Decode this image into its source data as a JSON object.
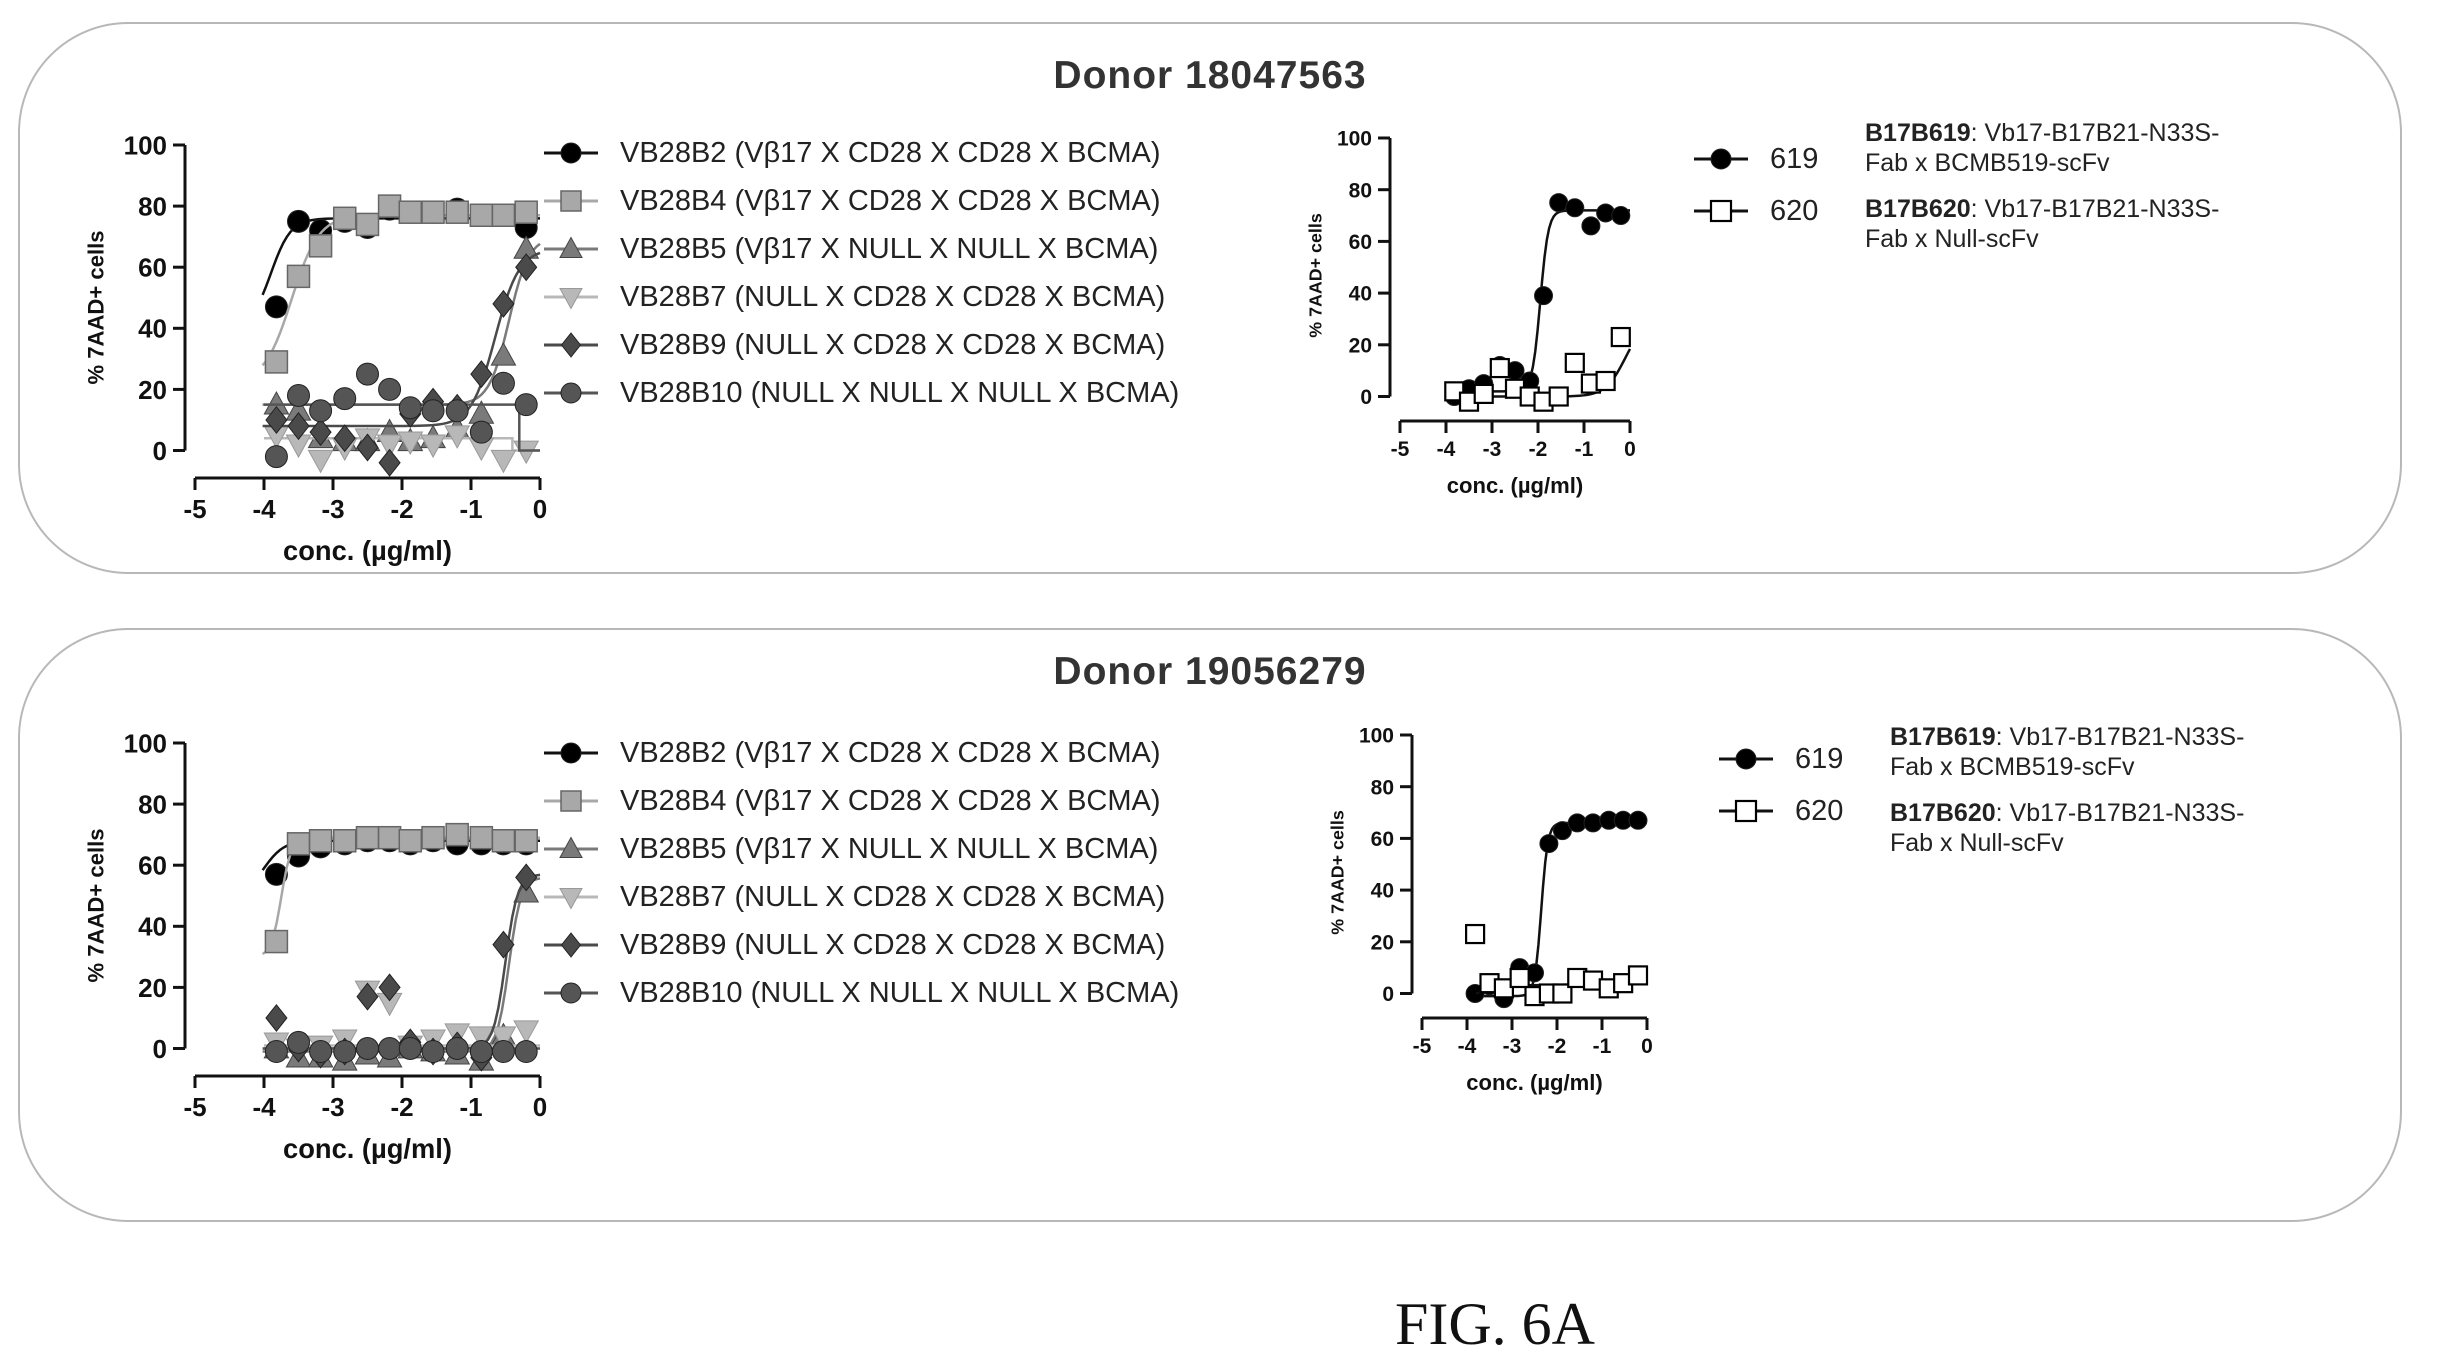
{
  "figure_label": "FIG. 6A",
  "chart_data": [
    {
      "id": "d1-main",
      "type": "scatter",
      "panel_title": "Donor 18047563",
      "xlabel": "conc. (µg/ml)",
      "ylabel": "% 7AAD+ cells",
      "xlim": [
        -5,
        0
      ],
      "ylim": [
        0,
        100
      ],
      "xticks": [
        -5,
        -4,
        -3,
        -2,
        -1,
        0
      ],
      "yticks": [
        0,
        20,
        40,
        60,
        80,
        100
      ],
      "series": [
        {
          "name": "VB28B2 (Vβ17 X CD28 X CD28 X BCMA)",
          "marker": "circle",
          "color": "#000000",
          "x": [
            -3.82,
            -3.5,
            -3.18,
            -2.83,
            -2.5,
            -2.18,
            -1.88,
            -1.55,
            -1.2,
            -0.85,
            -0.53,
            -0.2
          ],
          "y": [
            47,
            75,
            72,
            75,
            73,
            79,
            78,
            78,
            79,
            77,
            77,
            73
          ],
          "curve": {
            "type": "sigmoid",
            "bottom": 40,
            "top": 76,
            "ec50": -3.9,
            "slope": 3
          }
        },
        {
          "name": "VB28B4 (Vβ17 X CD28 X CD28 X BCMA)",
          "marker": "square",
          "color": "#a8a8a8",
          "x": [
            -3.82,
            -3.5,
            -3.18,
            -2.83,
            -2.5,
            -2.18,
            -1.88,
            -1.55,
            -1.2,
            -0.85,
            -0.53,
            -0.2
          ],
          "y": [
            29,
            57,
            67,
            76,
            74,
            80,
            78,
            78,
            78,
            77,
            77,
            78
          ],
          "curve": {
            "type": "sigmoid",
            "bottom": 22,
            "top": 77,
            "ec50": -3.6,
            "slope": 2.2
          }
        },
        {
          "name": "VB28B5 (Vβ17 X NULL X NULL X BCMA)",
          "marker": "triangle-up",
          "color": "#7a7a7a",
          "x": [
            -3.82,
            -3.5,
            -3.18,
            -2.83,
            -2.5,
            -2.18,
            -1.88,
            -1.55,
            -1.2,
            -0.85,
            -0.53,
            -0.2
          ],
          "y": [
            15,
            13,
            4,
            3,
            3,
            6,
            3,
            4,
            7,
            12,
            31,
            66
          ],
          "curve": {
            "type": "sigmoid",
            "bottom": 15,
            "top": 70,
            "ec50": -0.45,
            "slope": 3
          }
        },
        {
          "name": "VB28B7 (NULL X CD28 X CD28 X BCMA)",
          "marker": "triangle-down",
          "color": "#b8b8b8",
          "x": [
            -3.82,
            -3.5,
            -3.18,
            -2.83,
            -2.5,
            -2.18,
            -1.88,
            -1.55,
            -1.2,
            -0.85,
            -0.53,
            -0.2
          ],
          "y": [
            5,
            2,
            -3,
            1,
            4,
            2,
            3,
            2,
            5,
            1,
            -3,
            0
          ],
          "curve": {
            "type": "line",
            "x": [
              -4,
              -0.4,
              -0.4,
              0
            ],
            "y": [
              4,
              4,
              0,
              0
            ]
          }
        },
        {
          "name": "VB28B9 (NULL X CD28 X CD28 X BCMA)",
          "marker": "diamond",
          "color": "#4a4a4a",
          "x": [
            -3.82,
            -3.5,
            -3.18,
            -2.83,
            -2.5,
            -2.18,
            -1.88,
            -1.55,
            -1.2,
            -0.85,
            -0.53,
            -0.2
          ],
          "y": [
            10,
            8,
            6,
            4,
            1,
            -4,
            12,
            16,
            14,
            25,
            48,
            60
          ],
          "curve": {
            "type": "sigmoid",
            "bottom": 8,
            "top": 66,
            "ec50": -0.65,
            "slope": 2.5
          }
        },
        {
          "name": "VB28B10 (NULL X NULL X NULL X BCMA)",
          "marker": "circle",
          "color": "#555555",
          "x": [
            -3.82,
            -3.5,
            -3.18,
            -2.83,
            -2.5,
            -2.18,
            -1.88,
            -1.55,
            -1.2,
            -0.85,
            -0.53,
            -0.2
          ],
          "y": [
            -2,
            18,
            13,
            17,
            25,
            20,
            14,
            13,
            13,
            6,
            22,
            15
          ],
          "curve": {
            "type": "line",
            "x": [
              -4,
              -0.3,
              -0.3,
              0
            ],
            "y": [
              15,
              15,
              0,
              0
            ]
          }
        }
      ]
    },
    {
      "id": "d1-side",
      "type": "scatter",
      "xlabel": "conc. (µg/ml)",
      "ylabel": "% 7AAD+ cells",
      "xlim": [
        -5,
        0
      ],
      "ylim": [
        0,
        100
      ],
      "xticks": [
        -5,
        -4,
        -3,
        -2,
        -1,
        0
      ],
      "yticks": [
        0,
        20,
        40,
        60,
        80,
        100
      ],
      "series": [
        {
          "name": "619",
          "marker": "circle",
          "color": "#000000",
          "x": [
            -3.82,
            -3.5,
            -3.18,
            -2.83,
            -2.5,
            -2.18,
            -1.88,
            -1.55,
            -1.2,
            -0.85,
            -0.53,
            -0.2
          ],
          "y": [
            0,
            3,
            5,
            12,
            10,
            6,
            39,
            75,
            73,
            66,
            71,
            70
          ],
          "curve": {
            "type": "sigmoid",
            "bottom": 2,
            "top": 72,
            "ec50": -1.95,
            "slope": 5
          }
        },
        {
          "name": "620",
          "marker": "open-square",
          "color": "#000000",
          "x": [
            -3.82,
            -3.5,
            -3.18,
            -2.83,
            -2.5,
            -2.18,
            -1.88,
            -1.55,
            -1.2,
            -0.85,
            -0.53,
            -0.2
          ],
          "y": [
            2,
            -2,
            1,
            11,
            3,
            0,
            -2,
            0,
            13,
            5,
            6,
            23
          ],
          "curve": {
            "type": "sigmoid",
            "bottom": 0,
            "top": 30,
            "ec50": -0.1,
            "slope": 2
          }
        }
      ]
    },
    {
      "id": "d2-main",
      "type": "scatter",
      "panel_title": "Donor 19056279",
      "xlabel": "conc. (µg/ml)",
      "ylabel": "% 7AAD+ cells",
      "xlim": [
        -5,
        0
      ],
      "ylim": [
        0,
        100
      ],
      "xticks": [
        -5,
        -4,
        -3,
        -2,
        -1,
        0
      ],
      "yticks": [
        0,
        20,
        40,
        60,
        80,
        100
      ],
      "series": [
        {
          "name": "VB28B2 (Vβ17 X CD28 X CD28 X BCMA)",
          "marker": "circle",
          "color": "#000000",
          "x": [
            -3.82,
            -3.5,
            -3.18,
            -2.83,
            -2.5,
            -2.18,
            -1.88,
            -1.55,
            -1.2,
            -0.85,
            -0.53,
            -0.2
          ],
          "y": [
            57,
            63,
            66,
            67,
            68,
            68,
            67,
            68,
            67,
            67,
            67,
            67
          ],
          "curve": {
            "type": "sigmoid",
            "bottom": 50,
            "top": 68,
            "ec50": -4.0,
            "slope": 3
          }
        },
        {
          "name": "VB28B4 (Vβ17 X CD28 X CD28 X BCMA)",
          "marker": "square",
          "color": "#a8a8a8",
          "x": [
            -3.82,
            -3.5,
            -3.18,
            -2.83,
            -2.5,
            -2.18,
            -1.88,
            -1.55,
            -1.2,
            -0.85,
            -0.53,
            -0.2
          ],
          "y": [
            35,
            67,
            68,
            68,
            69,
            69,
            68,
            69,
            70,
            69,
            68,
            68
          ],
          "curve": {
            "type": "sigmoid",
            "bottom": 30,
            "top": 69,
            "ec50": -3.75,
            "slope": 6
          }
        },
        {
          "name": "VB28B5 (Vβ17 X NULL X NULL X BCMA)",
          "marker": "triangle-up",
          "color": "#7a7a7a",
          "x": [
            -3.82,
            -3.5,
            -3.18,
            -2.83,
            -2.5,
            -2.18,
            -1.88,
            -1.55,
            -1.2,
            -0.85,
            -0.53,
            -0.2
          ],
          "y": [
            0,
            -3,
            -3,
            -4,
            -2,
            -3,
            0,
            -1,
            -2,
            -4,
            4,
            51
          ],
          "curve": {
            "type": "sigmoid",
            "bottom": -1,
            "top": 56,
            "ec50": -0.45,
            "slope": 5
          }
        },
        {
          "name": "VB28B7 (NULL X CD28 X CD28 X BCMA)",
          "marker": "triangle-down",
          "color": "#b8b8b8",
          "x": [
            -3.82,
            -3.5,
            -3.18,
            -2.83,
            -2.5,
            -2.18,
            -1.88,
            -1.55,
            -1.2,
            -0.85,
            -0.53,
            -0.2
          ],
          "y": [
            2,
            0,
            1,
            3,
            19,
            15,
            1,
            3,
            5,
            4,
            4,
            6
          ],
          "curve": {
            "type": "line",
            "x": [
              -4,
              0
            ],
            "y": [
              1,
              1
            ]
          }
        },
        {
          "name": "VB28B9 (NULL X CD28 X CD28 X BCMA)",
          "marker": "diamond",
          "color": "#4a4a4a",
          "x": [
            -3.82,
            -3.5,
            -3.18,
            -2.83,
            -2.5,
            -2.18,
            -1.88,
            -1.55,
            -1.2,
            -0.85,
            -0.53,
            -0.2
          ],
          "y": [
            10,
            0,
            -2,
            -1,
            17,
            20,
            2,
            -1,
            1,
            -3,
            34,
            56
          ],
          "curve": {
            "type": "sigmoid",
            "bottom": 0,
            "top": 57,
            "ec50": -0.5,
            "slope": 5
          }
        },
        {
          "name": "VB28B10 (NULL X NULL X NULL X BCMA)",
          "marker": "circle",
          "color": "#555555",
          "x": [
            -3.82,
            -3.5,
            -3.18,
            -2.83,
            -2.5,
            -2.18,
            -1.88,
            -1.55,
            -1.2,
            -0.85,
            -0.53,
            -0.2
          ],
          "y": [
            -1,
            2,
            -1,
            -1,
            0,
            0,
            0,
            -1,
            0,
            -1,
            -1,
            -1
          ],
          "curve": {
            "type": "line",
            "x": [
              -4,
              0
            ],
            "y": [
              0,
              0
            ]
          }
        }
      ]
    },
    {
      "id": "d2-side",
      "type": "scatter",
      "xlabel": "conc. (µg/ml)",
      "ylabel": "% 7AAD+ cells",
      "xlim": [
        -5,
        0
      ],
      "ylim": [
        0,
        100
      ],
      "xticks": [
        -5,
        -4,
        -3,
        -2,
        -1,
        0
      ],
      "yticks": [
        0,
        20,
        40,
        60,
        80,
        100
      ],
      "series": [
        {
          "name": "619",
          "marker": "circle",
          "color": "#000000",
          "x": [
            -3.82,
            -3.5,
            -3.18,
            -2.83,
            -2.5,
            -2.18,
            -1.88,
            -1.55,
            -1.2,
            -0.85,
            -0.53,
            -0.2
          ],
          "y": [
            0,
            3,
            -2,
            10,
            8,
            58,
            63,
            66,
            66,
            67,
            67,
            67
          ],
          "curve": {
            "type": "sigmoid",
            "bottom": -1,
            "top": 66,
            "ec50": -2.35,
            "slope": 6
          }
        },
        {
          "name": "620",
          "marker": "open-square",
          "color": "#000000",
          "x": [
            -3.82,
            -3.5,
            -3.18,
            -2.83,
            -2.5,
            -2.18,
            -1.88,
            -1.55,
            -1.2,
            -0.85,
            -0.53,
            -0.2
          ],
          "y": [
            23,
            4,
            2,
            6,
            -1,
            0,
            0,
            6,
            5,
            2,
            4,
            7
          ],
          "curve": {
            "type": "line",
            "x": [
              -3.8,
              -3.2,
              0
            ],
            "y": [
              0,
              3,
              4
            ]
          }
        }
      ]
    }
  ],
  "side_notes": [
    {
      "entries": [
        {
          "code": "B17B619",
          "rest_line1": ": Vb17-B17B21-N33S-",
          "line2": "Fab x BCMB519-scFv"
        },
        {
          "code": "B17B620",
          "rest_line1": ": Vb17-B17B21-N33S-",
          "line2": "Fab x Null-scFv"
        }
      ]
    },
    {
      "entries": [
        {
          "code": "B17B619",
          "rest_line1": ": Vb17-B17B21-N33S-",
          "line2": "Fab x BCMB519-scFv"
        },
        {
          "code": "B17B620",
          "rest_line1": ": Vb17-B17B21-N33S-",
          "line2": "Fab x Null-scFv"
        }
      ]
    }
  ]
}
